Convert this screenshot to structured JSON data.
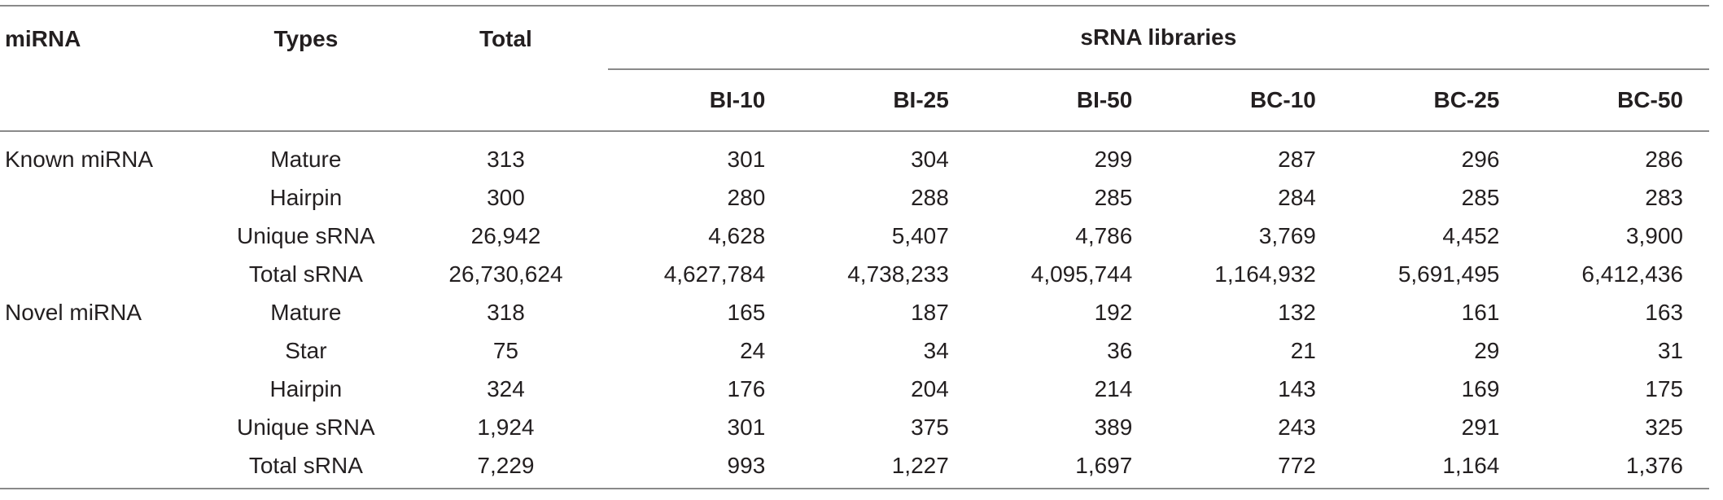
{
  "table": {
    "headers": {
      "mirna": "miRNA",
      "types": "Types",
      "total": "Total",
      "libraries": "sRNA libraries",
      "libs": [
        "BI-10",
        "BI-25",
        "BI-50",
        "BC-10",
        "BC-25",
        "BC-50"
      ]
    },
    "rows": [
      {
        "group": "Known miRNA",
        "type": "Mature",
        "total": "313",
        "values": [
          "301",
          "304",
          "299",
          "287",
          "296",
          "286"
        ]
      },
      {
        "group": "",
        "type": "Hairpin",
        "total": "300",
        "values": [
          "280",
          "288",
          "285",
          "284",
          "285",
          "283"
        ]
      },
      {
        "group": "",
        "type": "Unique sRNA",
        "total": "26,942",
        "values": [
          "4,628",
          "5,407",
          "4,786",
          "3,769",
          "4,452",
          "3,900"
        ]
      },
      {
        "group": "",
        "type": "Total sRNA",
        "total": "26,730,624",
        "values": [
          "4,627,784",
          "4,738,233",
          "4,095,744",
          "1,164,932",
          "5,691,495",
          "6,412,436"
        ]
      },
      {
        "group": "Novel miRNA",
        "type": "Mature",
        "total": "318",
        "values": [
          "165",
          "187",
          "192",
          "132",
          "161",
          "163"
        ]
      },
      {
        "group": "",
        "type": "Star",
        "total": "75",
        "values": [
          "24",
          "34",
          "36",
          "21",
          "29",
          "31"
        ]
      },
      {
        "group": "",
        "type": "Hairpin",
        "total": "324",
        "values": [
          "176",
          "204",
          "214",
          "143",
          "169",
          "175"
        ]
      },
      {
        "group": "",
        "type": "Unique sRNA",
        "total": "1,924",
        "values": [
          "301",
          "375",
          "389",
          "243",
          "291",
          "325"
        ]
      },
      {
        "group": "",
        "type": "Total sRNA",
        "total": "7,229",
        "values": [
          "993",
          "1,227",
          "1,697",
          "772",
          "1,164",
          "1,376"
        ]
      }
    ]
  }
}
